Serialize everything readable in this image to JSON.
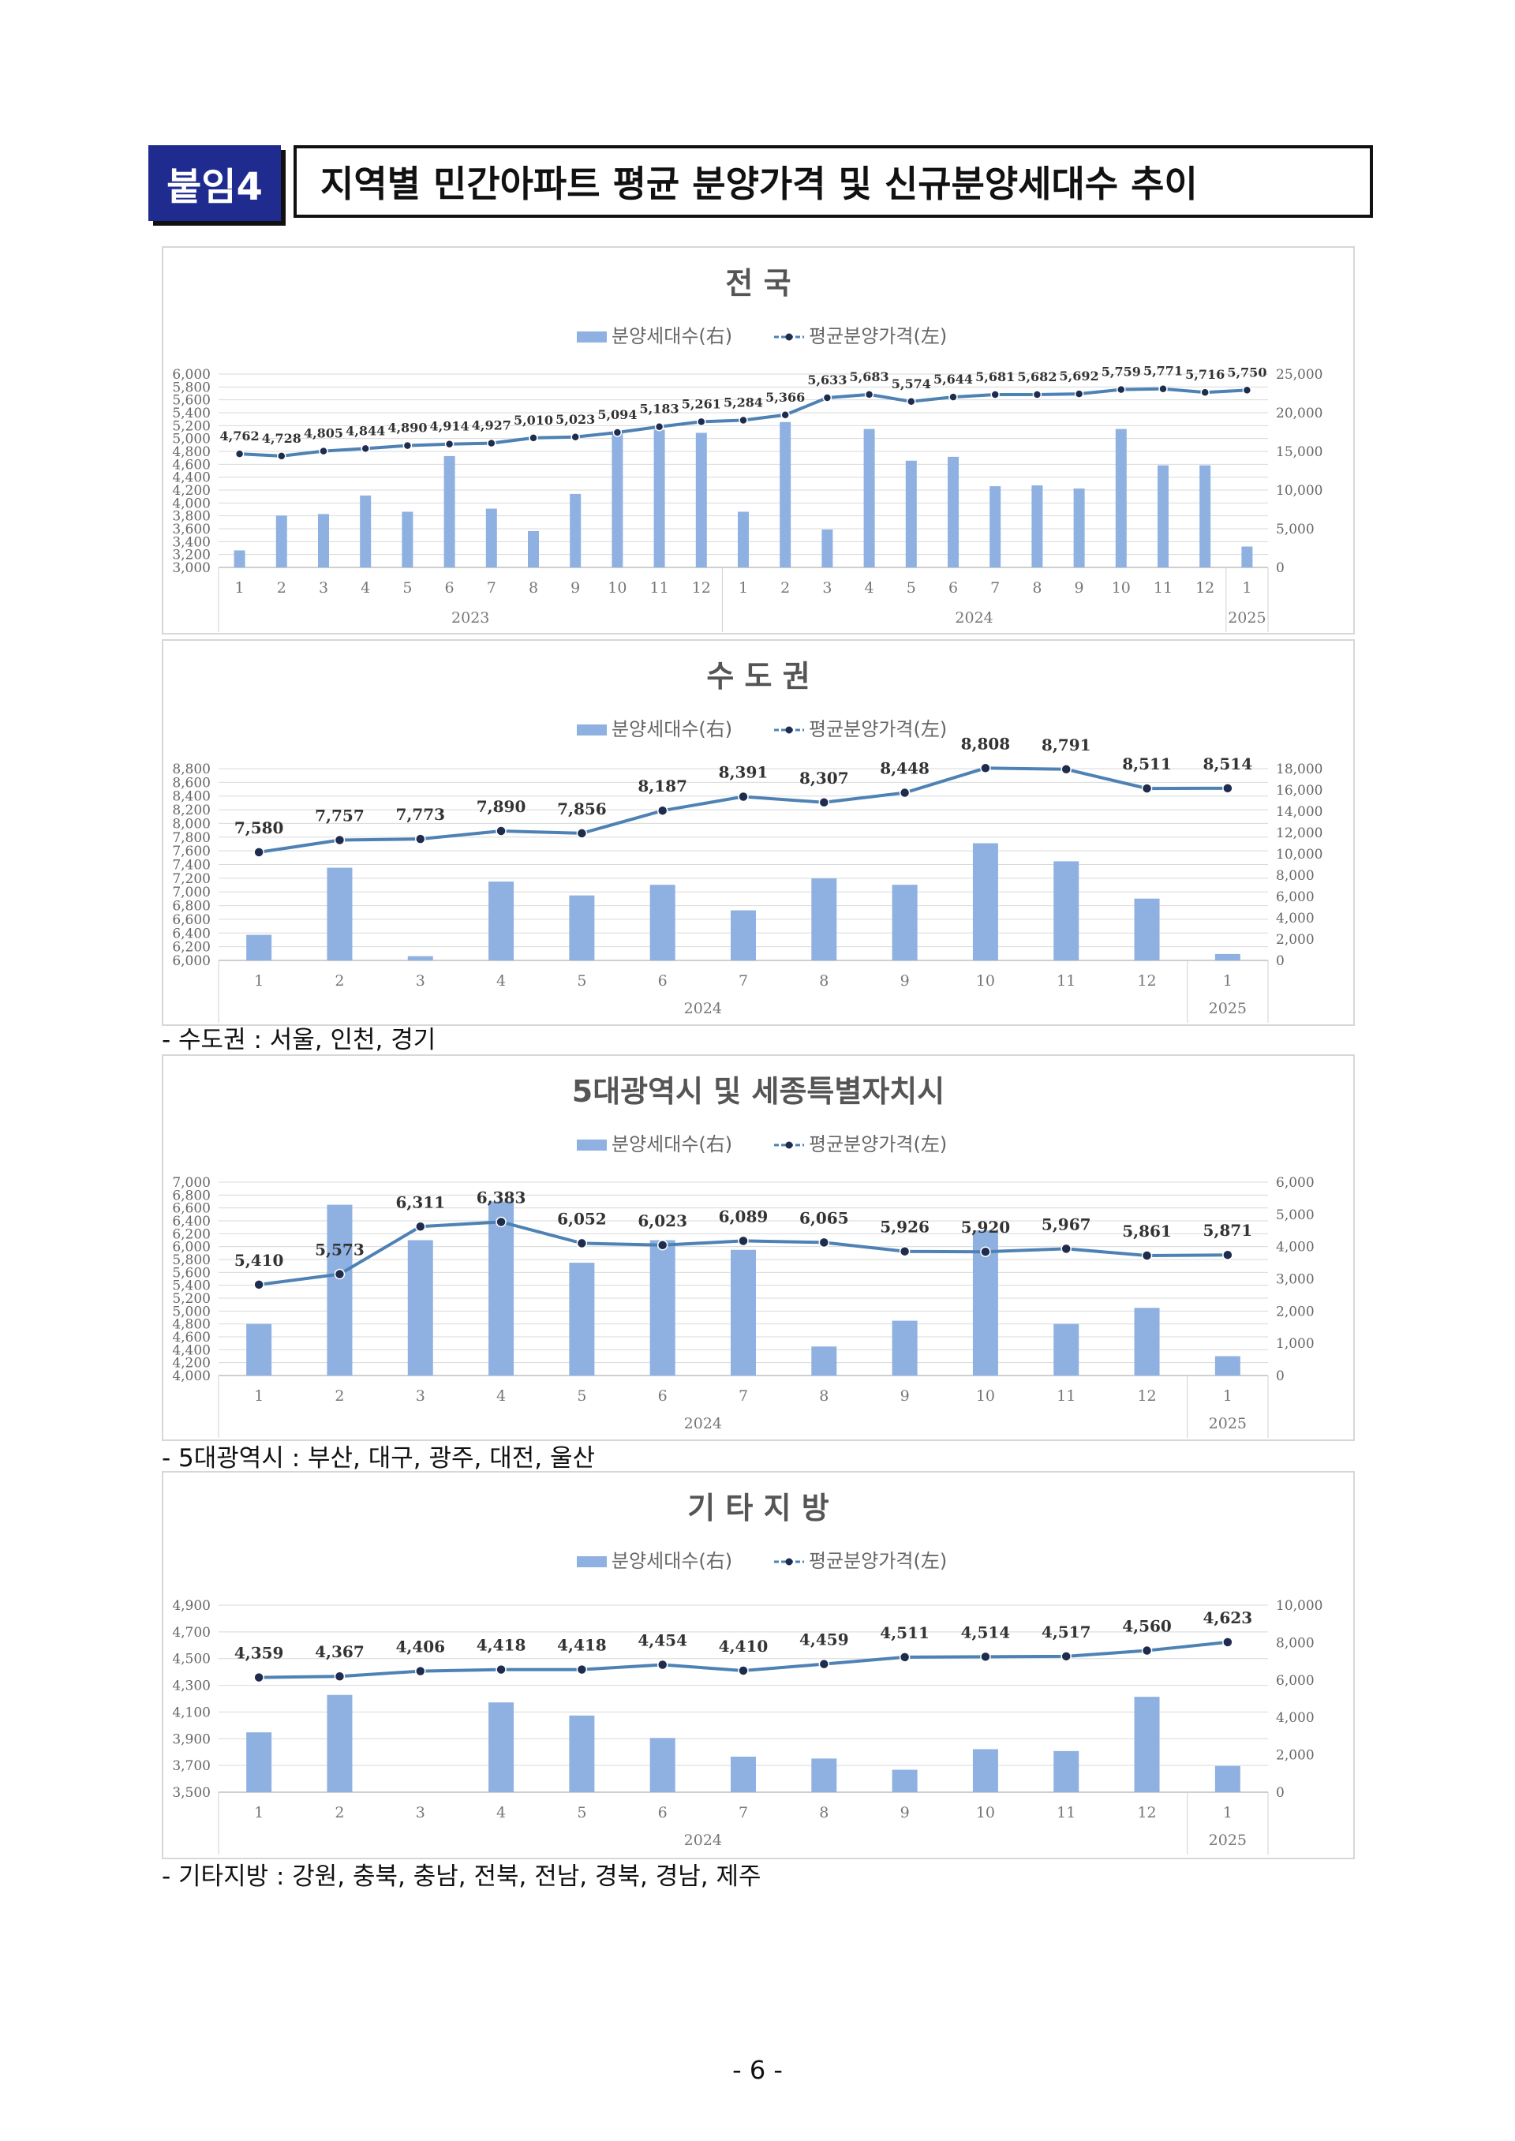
{
  "header": {
    "badge": "붙임4",
    "title": "지역별 민간아파트 평균 분양가격 및 신규분양세대수 추이"
  },
  "notes": [
    "- 수도권 : 서울, 인천, 경기",
    "- 5대광역시 : 부산, 대구, 광주, 대전, 울산",
    "- 기타지방 : 강원, 충북, 충남, 전북, 전남, 경북, 경남, 제주"
  ],
  "page_number": "- 6 -",
  "colors": {
    "bar": "#8fb1e1",
    "line": "#4e82b4",
    "marker": "#1e2c4e",
    "grid": "#d9d9d9"
  },
  "chart_data": [
    {
      "type": "bar",
      "title": "전  국",
      "legend": {
        "bar": "분양세대수(右)",
        "line": "평균분양가격(左)",
        "position": "top"
      },
      "categories": [
        "1",
        "2",
        "3",
        "4",
        "5",
        "6",
        "7",
        "8",
        "9",
        "10",
        "11",
        "12",
        "1",
        "2",
        "3",
        "4",
        "5",
        "6",
        "7",
        "8",
        "9",
        "10",
        "11",
        "12",
        "1"
      ],
      "year_groups": [
        {
          "label": "2023",
          "count": 12
        },
        {
          "label": "2024",
          "count": 12
        },
        {
          "label": "2025",
          "count": 1
        }
      ],
      "series": [
        {
          "name": "평균분양가격(左)",
          "type": "line",
          "axis": "left",
          "values": [
            4762,
            4728,
            4805,
            4844,
            4890,
            4914,
            4927,
            5010,
            5023,
            5094,
            5183,
            5261,
            5284,
            5366,
            5633,
            5683,
            5574,
            5644,
            5681,
            5682,
            5692,
            5759,
            5771,
            5716,
            5750
          ],
          "labels": [
            "4,762",
            "4,728",
            "4,805",
            "4,844",
            "4,890",
            "4,914",
            "4,927",
            "5,010",
            "5,023",
            "5,094",
            "5,183",
            "5,261",
            "5,284",
            "5,366",
            "5,633",
            "5,683",
            "5,574",
            "5,644",
            "5,681",
            "5,682",
            "5,692",
            "5,759",
            "5,771",
            "5,716",
            "5,750"
          ]
        },
        {
          "name": "분양세대수(右)",
          "type": "bar",
          "axis": "right",
          "values": [
            2200,
            6700,
            6900,
            9300,
            7200,
            14400,
            7600,
            4700,
            9500,
            17600,
            17800,
            17400,
            7200,
            18800,
            4900,
            17900,
            13800,
            14300,
            10500,
            10600,
            10200,
            17900,
            13200,
            13200,
            2700
          ]
        }
      ],
      "left_axis": {
        "min": 3000,
        "max": 6000,
        "ticks": [
          "3,000",
          "3,200",
          "3,400",
          "3,600",
          "3,800",
          "4,000",
          "4,200",
          "4,400",
          "4,600",
          "4,800",
          "5,000",
          "5,200",
          "5,400",
          "5,600",
          "5,800",
          "6,000"
        ]
      },
      "right_axis": {
        "min": 0,
        "max": 25000,
        "ticks": [
          "0",
          "5,000",
          "10,000",
          "15,000",
          "20,000",
          "25,000"
        ]
      }
    },
    {
      "type": "bar",
      "title": "수 도 권",
      "legend": {
        "bar": "분양세대수(右)",
        "line": "평균분양가격(左)",
        "position": "top"
      },
      "categories": [
        "1",
        "2",
        "3",
        "4",
        "5",
        "6",
        "7",
        "8",
        "9",
        "10",
        "11",
        "12",
        "1"
      ],
      "year_groups": [
        {
          "label": "2024",
          "count": 12
        },
        {
          "label": "2025",
          "count": 1
        }
      ],
      "series": [
        {
          "name": "평균분양가격(左)",
          "type": "line",
          "axis": "left",
          "values": [
            7580,
            7757,
            7773,
            7890,
            7856,
            8187,
            8391,
            8307,
            8448,
            8808,
            8791,
            8511,
            8514
          ],
          "labels": [
            "7,580",
            "7,757",
            "7,773",
            "7,890",
            "7,856",
            "8,187",
            "8,391",
            "8,307",
            "8,448",
            "8,808",
            "8,791",
            "8,511",
            "8,514"
          ]
        },
        {
          "name": "분양세대수(右)",
          "type": "bar",
          "axis": "right",
          "values": [
            2400,
            8700,
            400,
            7400,
            6100,
            7100,
            4700,
            7700,
            7100,
            11000,
            9300,
            5800,
            600
          ]
        }
      ],
      "left_axis": {
        "min": 6000,
        "max": 8800,
        "ticks": [
          "6,000",
          "6,200",
          "6,400",
          "6,600",
          "6,800",
          "7,000",
          "7,200",
          "7,400",
          "7,600",
          "7,800",
          "8,000",
          "8,200",
          "8,400",
          "8,600",
          "8,800"
        ]
      },
      "right_axis": {
        "min": 0,
        "max": 18000,
        "ticks": [
          "0",
          "2,000",
          "4,000",
          "6,000",
          "8,000",
          "10,000",
          "12,000",
          "14,000",
          "16,000",
          "18,000"
        ]
      }
    },
    {
      "type": "bar",
      "title": "5대광역시 및 세종특별자치시",
      "legend": {
        "bar": "분양세대수(右)",
        "line": "평균분양가격(左)",
        "position": "top"
      },
      "categories": [
        "1",
        "2",
        "3",
        "4",
        "5",
        "6",
        "7",
        "8",
        "9",
        "10",
        "11",
        "12",
        "1"
      ],
      "year_groups": [
        {
          "label": "2024",
          "count": 12
        },
        {
          "label": "2025",
          "count": 1
        }
      ],
      "series": [
        {
          "name": "평균분양가격(左)",
          "type": "line",
          "axis": "left",
          "values": [
            5410,
            5573,
            6311,
            6383,
            6052,
            6023,
            6089,
            6065,
            5926,
            5920,
            5967,
            5861,
            5871
          ],
          "labels": [
            "5,410",
            "5,573",
            "6,311",
            "6,383",
            "6,052",
            "6,023",
            "6,089",
            "6,065",
            "5,926",
            "5,920",
            "5,967",
            "5,861",
            "5,871"
          ]
        },
        {
          "name": "분양세대수(右)",
          "type": "bar",
          "axis": "right",
          "values": [
            1600,
            5300,
            4200,
            5400,
            3500,
            4200,
            3900,
            900,
            1700,
            4500,
            1600,
            2100,
            600
          ]
        }
      ],
      "left_axis": {
        "min": 4000,
        "max": 7000,
        "ticks": [
          "4,000",
          "4,200",
          "4,400",
          "4,600",
          "4,800",
          "5,000",
          "5,200",
          "5,400",
          "5,600",
          "5,800",
          "6,000",
          "6,200",
          "6,400",
          "6,600",
          "6,800",
          "7,000"
        ]
      },
      "right_axis": {
        "min": 0,
        "max": 6000,
        "ticks": [
          "0",
          "1,000",
          "2,000",
          "3,000",
          "4,000",
          "5,000",
          "6,000"
        ]
      }
    },
    {
      "type": "bar",
      "title": "기 타 지 방",
      "legend": {
        "bar": "분양세대수(右)",
        "line": "평균분양가격(左)",
        "position": "top"
      },
      "categories": [
        "1",
        "2",
        "3",
        "4",
        "5",
        "6",
        "7",
        "8",
        "9",
        "10",
        "11",
        "12",
        "1"
      ],
      "year_groups": [
        {
          "label": "2024",
          "count": 12
        },
        {
          "label": "2025",
          "count": 1
        }
      ],
      "series": [
        {
          "name": "평균분양가격(左)",
          "type": "line",
          "axis": "left",
          "values": [
            4359,
            4367,
            4406,
            4418,
            4418,
            4454,
            4410,
            4459,
            4511,
            4514,
            4517,
            4560,
            4623
          ],
          "labels": [
            "4,359",
            "4,367",
            "4,406",
            "4,418",
            "4,418",
            "4,454",
            "4,410",
            "4,459",
            "4,511",
            "4,514",
            "4,517",
            "4,560",
            "4,623"
          ]
        },
        {
          "name": "분양세대수(右)",
          "type": "bar",
          "axis": "right",
          "values": [
            3200,
            5200,
            0,
            4800,
            4100,
            2900,
            1900,
            1800,
            1200,
            2300,
            2200,
            5100,
            1400
          ]
        }
      ],
      "left_axis": {
        "min": 3500,
        "max": 4900,
        "ticks": [
          "3,500",
          "3,700",
          "3,900",
          "4,100",
          "4,300",
          "4,500",
          "4,700",
          "4,900"
        ]
      },
      "right_axis": {
        "min": 0,
        "max": 10000,
        "ticks": [
          "0",
          "2,000",
          "4,000",
          "6,000",
          "8,000",
          "10,000"
        ]
      }
    }
  ]
}
